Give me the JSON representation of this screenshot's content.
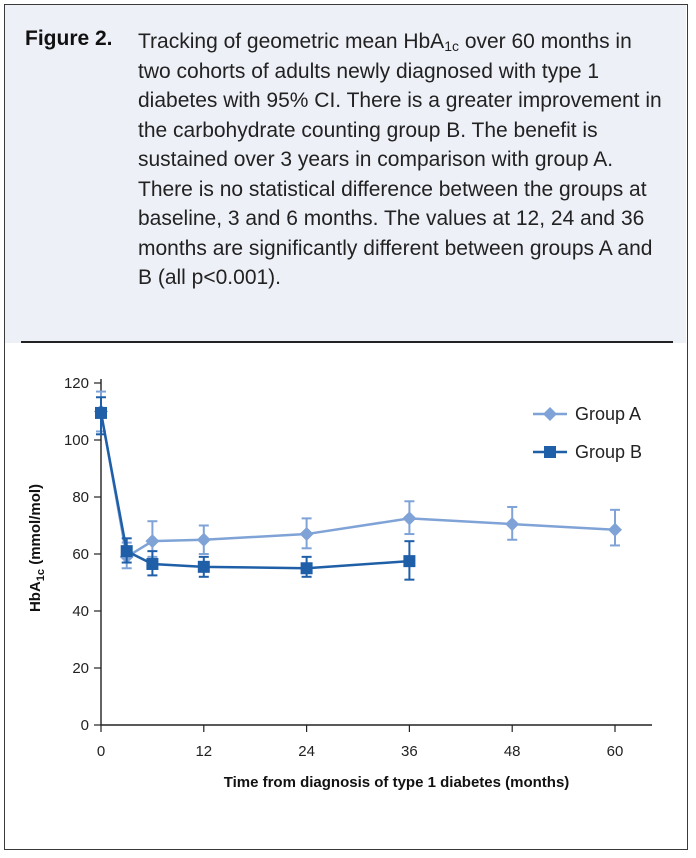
{
  "caption": {
    "label": "Figure 2.",
    "text_before": "Tracking of geometric mean HbA",
    "text_sub": "1c",
    "text_after": " over 60 months in two cohorts of adults newly diagnosed with type 1 diabetes with 95% CI. There is a greater improvement in the carbohydrate counting group B. The benefit is sustained over 3 years in comparison with group A. There is no statistical difference between the groups at baseline, 3 and 6 months. The values at 12, 24 and 36 months are significantly different between groups A and B (all p<0.001)."
  },
  "chart_data": {
    "type": "line",
    "title": "",
    "xlabel": "Time from diagnosis of type 1 diabetes (months)",
    "ylabel_main": "HbA",
    "ylabel_sub": "1c",
    "ylabel_unit": " (mmol/mol)",
    "xlim": [
      0,
      60
    ],
    "ylim": [
      0,
      120
    ],
    "xticks": [
      0,
      12,
      24,
      36,
      48,
      60
    ],
    "yticks": [
      0,
      20,
      40,
      60,
      80,
      100,
      120
    ],
    "legend_position": "top-right",
    "series": [
      {
        "name": "Group A",
        "color": "#7fa3d6",
        "marker": "diamond",
        "x": [
          0,
          3,
          6,
          12,
          24,
          36,
          48,
          60
        ],
        "y": [
          110,
          59,
          64.5,
          65,
          67,
          72.5,
          70.5,
          68.5
        ],
        "ci_low": [
          103,
          55,
          59,
          60,
          62,
          67,
          65,
          63
        ],
        "ci_high": [
          117,
          64,
          71.5,
          70,
          72.5,
          78.5,
          76.5,
          75.5
        ]
      },
      {
        "name": "Group B",
        "color": "#1f5fa8",
        "marker": "square",
        "x": [
          0,
          3,
          6,
          12,
          24,
          36
        ],
        "y": [
          109.5,
          61,
          56.5,
          55.5,
          55,
          57.5
        ],
        "ci_low": [
          102,
          57,
          52.5,
          52,
          52,
          51
        ],
        "ci_high": [
          115,
          65.5,
          61,
          59,
          59,
          64.5
        ]
      }
    ]
  }
}
